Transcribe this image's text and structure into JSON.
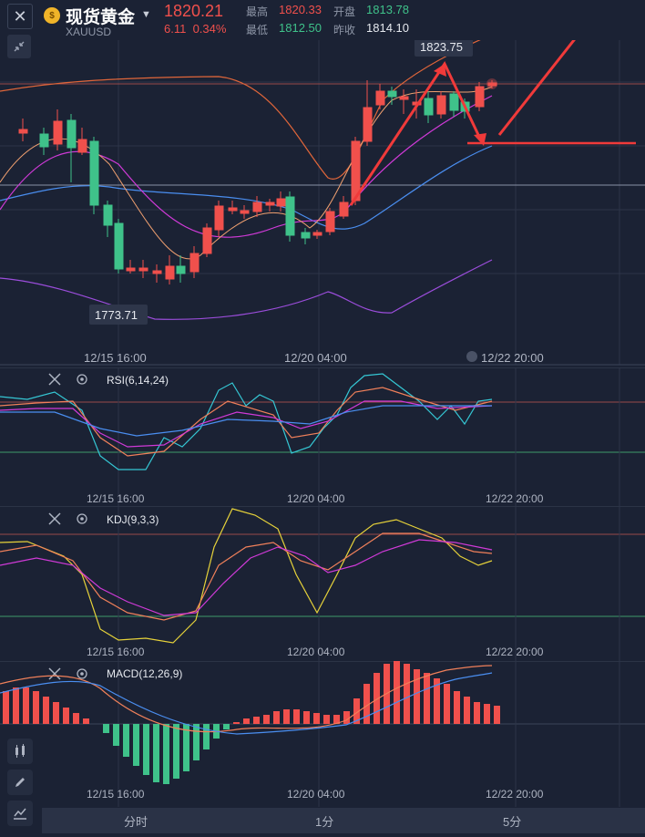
{
  "header": {
    "title": "现货黄金",
    "symbol": "XAUUSD",
    "price": "1820.21",
    "change": "6.11",
    "change_pct": "0.34%",
    "high_label": "最高",
    "high": "1820.33",
    "open_label": "开盘",
    "open": "1813.78",
    "low_label": "最低",
    "low": "1812.50",
    "prev_close_label": "昨收",
    "prev_close": "1814.10"
  },
  "main_chart": {
    "max_label": "1823.75",
    "min_label": "1773.71",
    "time_labels": [
      "12/15 16:00",
      "12/20 04:00",
      "12/22 20:00"
    ]
  },
  "indicators": {
    "rsi": {
      "label": "RSI(6,14,24)",
      "time_labels": [
        "12/15 16:00",
        "12/20 04:00",
        "12/22 20:00"
      ]
    },
    "kdj": {
      "label": "KDJ(9,3,3)",
      "time_labels": [
        "12/15 16:00",
        "12/20 04:00",
        "12/22 20:00"
      ]
    },
    "macd": {
      "label": "MACD(12,26,9)",
      "time_labels": [
        "12/15 16:00",
        "12/20 04:00",
        "12/22 20:00"
      ]
    }
  },
  "tabs": [
    "分时",
    "1分",
    "5分"
  ],
  "colors": {
    "up": "#f0504c",
    "down": "#3fc28a",
    "background": "#1b2234",
    "annotation": "#f03a3a"
  }
}
